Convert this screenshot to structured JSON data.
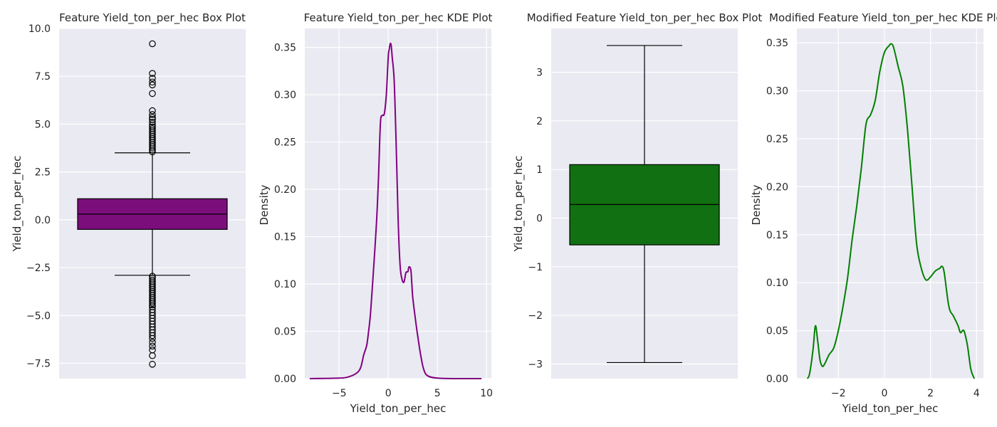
{
  "figure": {
    "background": "#ffffff",
    "axes_background": "#eaeaf2",
    "grid_color": "#ffffff",
    "text_color": "#262626"
  },
  "chart_data": [
    {
      "type": "box",
      "title": "Feature Yield_ton_per_hec Box Plot",
      "xlabel": "",
      "ylabel": "Yield_ton_per_hec",
      "ylim": [
        -8.3,
        10.0
      ],
      "yticks": [
        -7.5,
        -5.0,
        -2.5,
        0.0,
        2.5,
        5.0,
        7.5,
        10.0
      ],
      "ytick_labels": [
        "−7.5",
        "−5.0",
        "−2.5",
        "0.0",
        "2.5",
        "5.0",
        "7.5",
        "10.0"
      ],
      "grid": true,
      "color": "#7b0e7b",
      "box": {
        "q1": -0.5,
        "median": 0.3,
        "q3": 1.1,
        "whisker_low": -2.9,
        "whisker_high": 3.5
      },
      "outliers": [
        9.2,
        7.65,
        7.4,
        7.2,
        7.05,
        6.6,
        5.7,
        5.5,
        5.35,
        5.25,
        5.1,
        4.95,
        4.85,
        4.75,
        4.65,
        4.55,
        4.45,
        4.35,
        4.25,
        4.15,
        4.05,
        3.95,
        3.85,
        3.75,
        3.65,
        3.55,
        -2.95,
        -3.05,
        -3.15,
        -3.25,
        -3.35,
        -3.45,
        -3.55,
        -3.65,
        -3.75,
        -3.85,
        -3.95,
        -4.05,
        -4.15,
        -4.25,
        -4.35,
        -4.45,
        -4.55,
        -4.7,
        -4.85,
        -5.0,
        -5.15,
        -5.3,
        -5.45,
        -5.6,
        -5.75,
        -5.9,
        -6.05,
        -6.2,
        -6.4,
        -6.6,
        -6.8,
        -7.1,
        -7.55
      ]
    },
    {
      "type": "line",
      "subtype": "kde",
      "title": "Feature Yield_ton_per_hec KDE Plot",
      "xlabel": "Yield_ton_per_hec",
      "ylabel": "Density",
      "xlim": [
        -8.5,
        10.5
      ],
      "ylim": [
        0.0,
        0.37
      ],
      "xticks": [
        -5,
        0,
        5,
        10
      ],
      "xtick_labels": [
        "−5",
        "0",
        "5",
        "10"
      ],
      "yticks": [
        0.0,
        0.05,
        0.1,
        0.15,
        0.2,
        0.25,
        0.3,
        0.35
      ],
      "ytick_labels": [
        "0.00",
        "0.05",
        "0.10",
        "0.15",
        "0.20",
        "0.25",
        "0.30",
        "0.35"
      ],
      "grid": true,
      "color": "#800080",
      "x": [
        -8.0,
        -5.0,
        -4.0,
        -3.2,
        -2.8,
        -2.5,
        -2.2,
        -2.0,
        -1.8,
        -1.5,
        -1.2,
        -1.0,
        -0.8,
        -0.6,
        -0.4,
        -0.2,
        0.0,
        0.1,
        0.2,
        0.3,
        0.4,
        0.6,
        0.8,
        1.0,
        1.2,
        1.4,
        1.6,
        1.8,
        2.0,
        2.1,
        2.3,
        2.4,
        2.5,
        2.8,
        3.0,
        3.3,
        3.6,
        4.0,
        5.0,
        7.0,
        9.5
      ],
      "y": [
        0.0,
        0.0005,
        0.002,
        0.006,
        0.012,
        0.025,
        0.035,
        0.05,
        0.07,
        0.115,
        0.165,
        0.21,
        0.27,
        0.278,
        0.28,
        0.3,
        0.34,
        0.348,
        0.354,
        0.352,
        0.34,
        0.315,
        0.25,
        0.17,
        0.12,
        0.105,
        0.102,
        0.112,
        0.113,
        0.118,
        0.115,
        0.1,
        0.085,
        0.06,
        0.045,
        0.025,
        0.01,
        0.003,
        0.0005,
        0.0,
        0.0
      ]
    },
    {
      "type": "box",
      "title": "Modified Feature Yield_ton_per_hec Box Plot",
      "xlabel": "",
      "ylabel": "Yield_ton_per_hec",
      "ylim": [
        -3.3,
        3.9
      ],
      "yticks": [
        -3,
        -2,
        -1,
        0,
        1,
        2,
        3
      ],
      "ytick_labels": [
        "−3",
        "−2",
        "−1",
        "0",
        "1",
        "2",
        "3"
      ],
      "grid": true,
      "color": "#117011",
      "box": {
        "q1": -0.55,
        "median": 0.28,
        "q3": 1.1,
        "whisker_low": -2.97,
        "whisker_high": 3.55
      },
      "outliers": []
    },
    {
      "type": "line",
      "subtype": "kde",
      "title": "Modified Feature Yield_ton_per_hec KDE Plot",
      "xlabel": "Yield_ton_per_hec",
      "ylabel": "Density",
      "xlim": [
        -3.8,
        4.3
      ],
      "ylim": [
        0.0,
        0.365
      ],
      "xticks": [
        -2,
        0,
        2,
        4
      ],
      "xtick_labels": [
        "−2",
        "0",
        "2",
        "4"
      ],
      "yticks": [
        0.0,
        0.05,
        0.1,
        0.15,
        0.2,
        0.25,
        0.3,
        0.35
      ],
      "ytick_labels": [
        "0.00",
        "0.05",
        "0.10",
        "0.15",
        "0.20",
        "0.25",
        "0.30",
        "0.35"
      ],
      "grid": true,
      "color": "#008000",
      "x": [
        -3.35,
        -3.25,
        -3.1,
        -3.0,
        -2.9,
        -2.8,
        -2.7,
        -2.6,
        -2.4,
        -2.2,
        -2.0,
        -1.8,
        -1.6,
        -1.4,
        -1.2,
        -1.0,
        -0.8,
        -0.6,
        -0.4,
        -0.2,
        0.0,
        0.2,
        0.3,
        0.4,
        0.6,
        0.8,
        1.0,
        1.2,
        1.4,
        1.6,
        1.8,
        2.0,
        2.2,
        2.4,
        2.5,
        2.6,
        2.8,
        3.0,
        3.2,
        3.3,
        3.45,
        3.6,
        3.75,
        3.9
      ],
      "y": [
        0.0,
        0.005,
        0.03,
        0.055,
        0.04,
        0.02,
        0.013,
        0.015,
        0.025,
        0.032,
        0.05,
        0.075,
        0.105,
        0.145,
        0.18,
        0.22,
        0.265,
        0.275,
        0.29,
        0.32,
        0.34,
        0.347,
        0.349,
        0.345,
        0.325,
        0.305,
        0.26,
        0.2,
        0.14,
        0.115,
        0.103,
        0.106,
        0.112,
        0.115,
        0.117,
        0.11,
        0.075,
        0.065,
        0.055,
        0.048,
        0.05,
        0.035,
        0.01,
        0.0
      ]
    }
  ]
}
